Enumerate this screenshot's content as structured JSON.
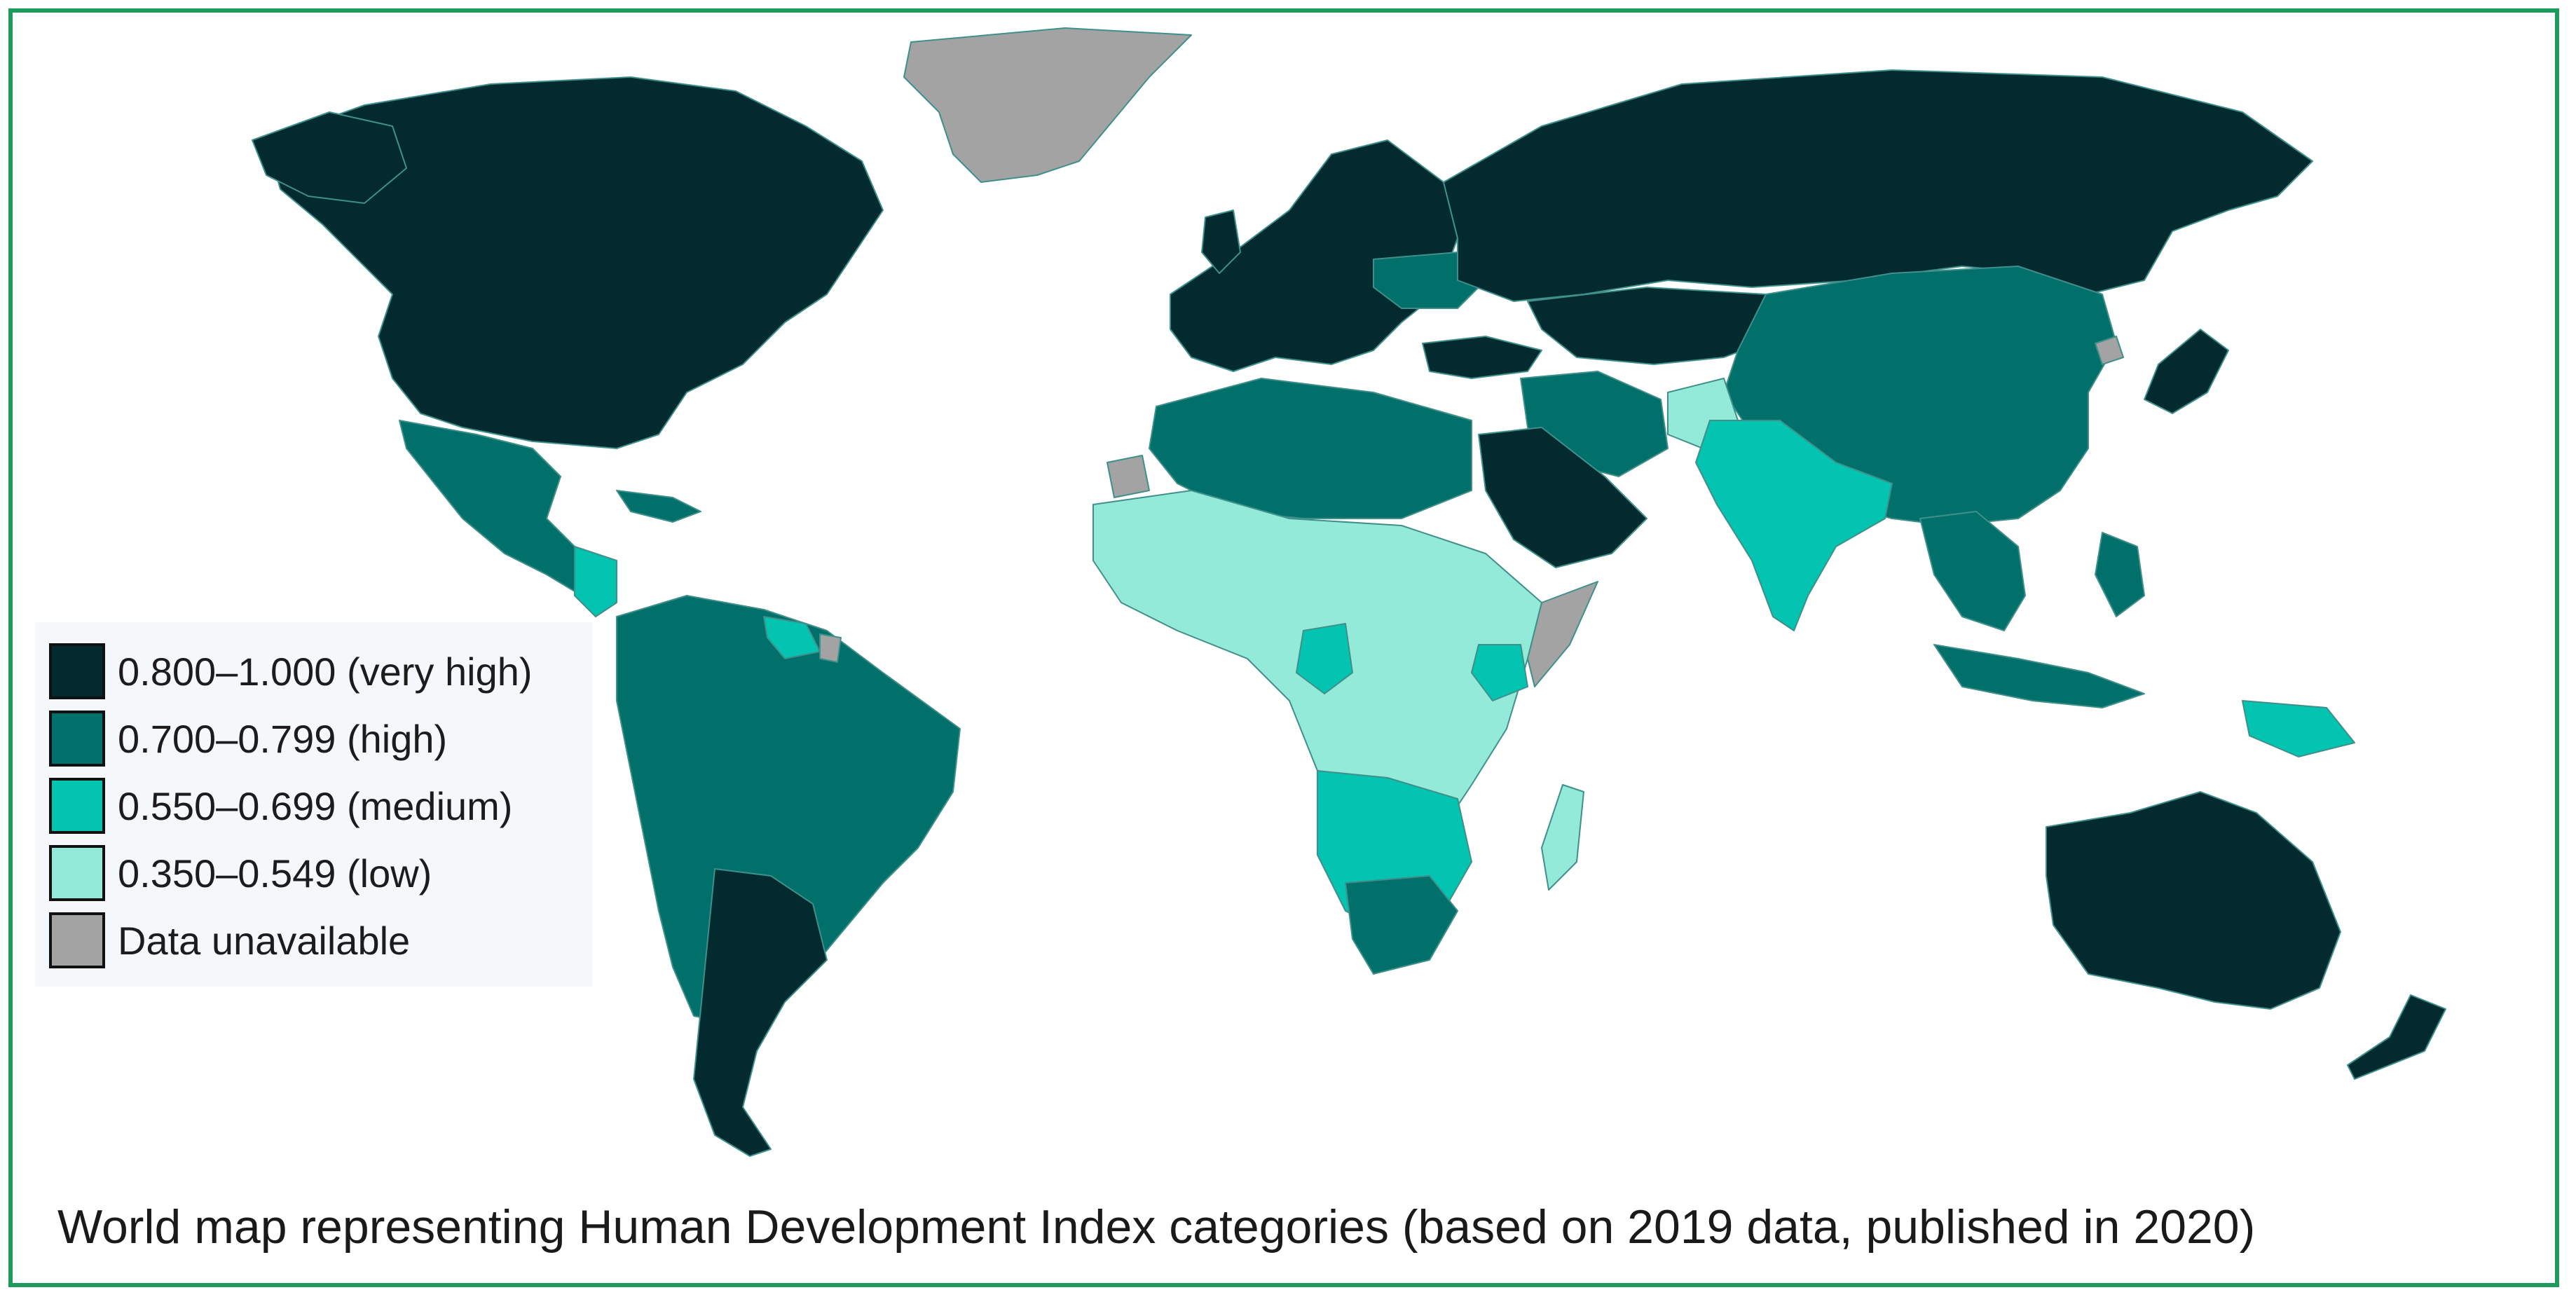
{
  "caption": "World map representing Human Development Index categories (based on 2019 data, published in 2020)",
  "legend": {
    "items": [
      {
        "label": "0.800–1.000 (very high)",
        "color": "#022a2f",
        "category": "very high"
      },
      {
        "label": "0.700–0.799 (high)",
        "color": "#02706a",
        "category": "high"
      },
      {
        "label": "0.550–0.699 (medium)",
        "color": "#02c4b0",
        "category": "medium"
      },
      {
        "label": "0.350–0.549 (low)",
        "color": "#94ead8",
        "category": "low"
      },
      {
        "label": "Data unavailable",
        "color": "#a3a3a3",
        "category": "unavailable"
      }
    ]
  },
  "colors": {
    "frame_border": "#1f9a5f",
    "ocean": "#ffffff",
    "country_border": "#3f8f8a"
  }
}
